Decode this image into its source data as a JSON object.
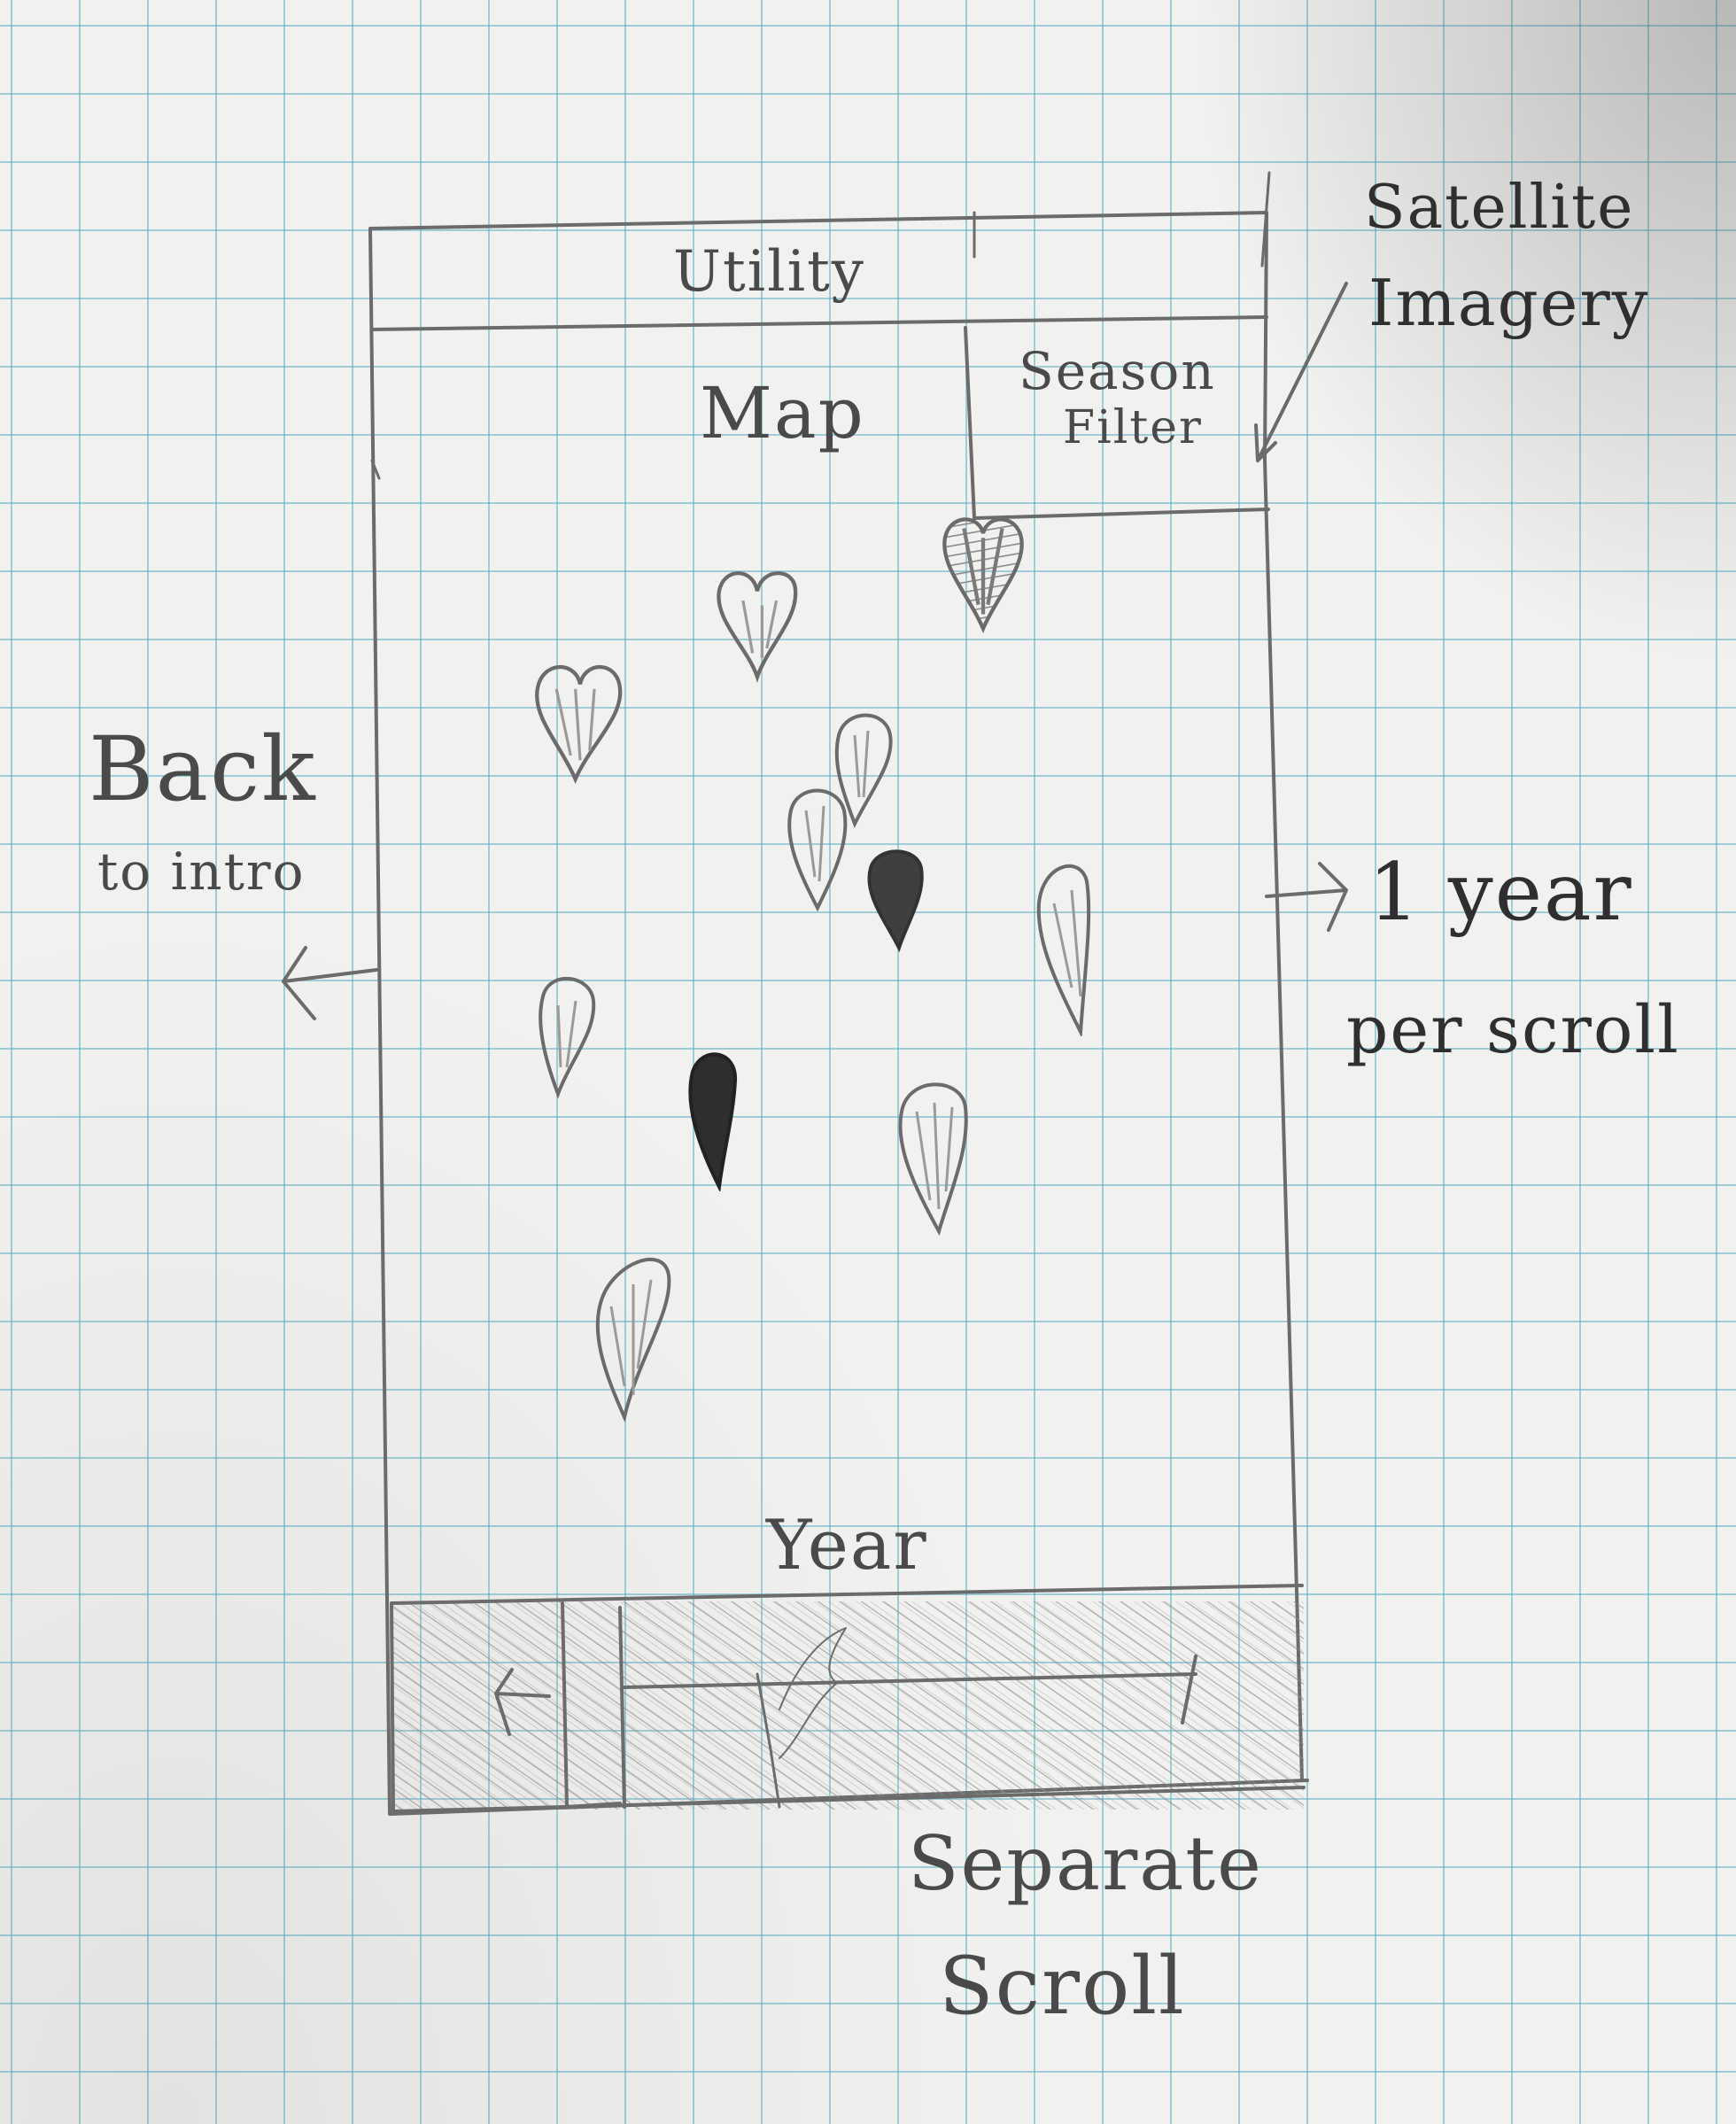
{
  "mockup": {
    "header": {
      "utility_label": "Utility"
    },
    "tabs": {
      "map_label": "Map",
      "season_filter_line1": "Season",
      "season_filter_line2": "Filter"
    },
    "timeline": {
      "year_label": "Year"
    }
  },
  "annotations": {
    "satellite_line1": "Satellite",
    "satellite_line2": "Imagery",
    "back_line1": "Back",
    "back_line2": "to intro",
    "scroll_line1": "1 year",
    "scroll_line2": "per scroll",
    "separate_line1": "Separate",
    "separate_line2": "Scroll"
  },
  "icons": {
    "map_pin": "balloon-pin-icon",
    "heart_pin": "heart-pin-icon",
    "left_arrow": "left-arrow-icon",
    "right_arrow": "right-arrow-icon",
    "hand": "hand-cursor-icon"
  },
  "colors": {
    "pencil": "#6b6b6b",
    "grid": "#5aafc3",
    "paper": "#f1f1ef"
  }
}
